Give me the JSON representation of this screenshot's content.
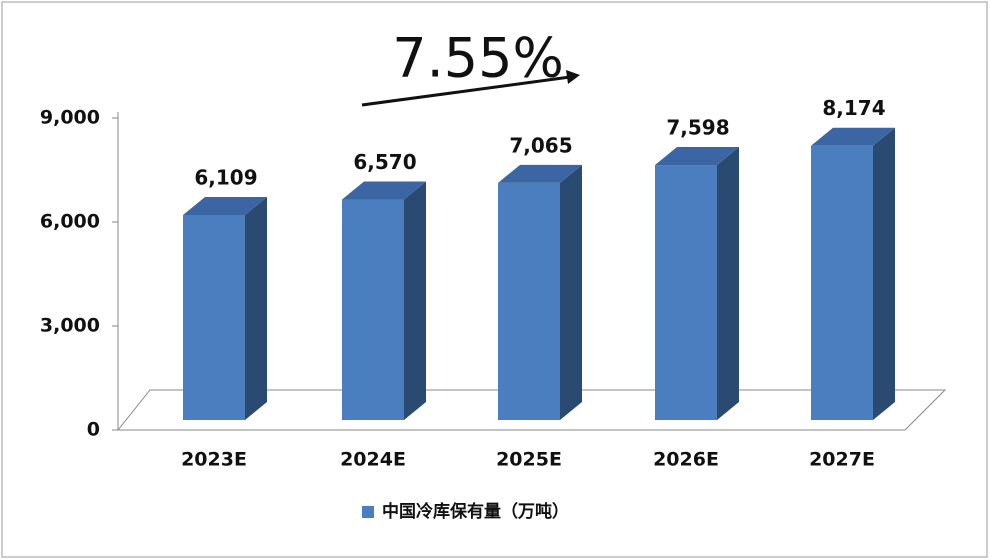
{
  "chart_data": {
    "type": "bar3d",
    "annotation": "7.55%",
    "categories": [
      "2023E",
      "2024E",
      "2025E",
      "2026E",
      "2027E"
    ],
    "series": [
      {
        "name": "中国冷库保有量（万吨）",
        "color": "#4a7ebf",
        "values": [
          6109,
          6570,
          7065,
          7598,
          8174
        ],
        "value_labels": [
          "6,109",
          "6,570",
          "7,065",
          "7,598",
          "8,174"
        ]
      }
    ],
    "ylim": [
      0,
      9000
    ],
    "yticks": [
      0,
      {
        "value": 3000,
        "label": "3,000"
      },
      {
        "value": 6000,
        "label": "6,000"
      },
      {
        "value": 9000,
        "label": "9,000"
      }
    ],
    "legend": "bottom"
  }
}
